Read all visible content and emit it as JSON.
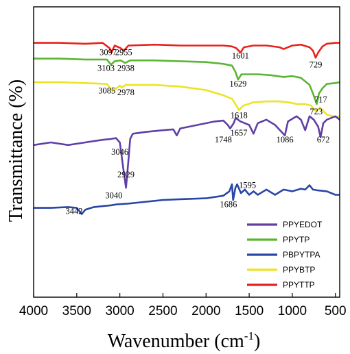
{
  "chart_data": {
    "type": "line",
    "xlabel_base": "Wavenumber (cm",
    "xlabel_sup": "-1",
    "xlabel_end": ")",
    "ylabel": "Transmittance (%)",
    "xlim": [
      4000,
      450
    ],
    "x_reversed": true,
    "x_ticks": [
      "4000",
      "3500",
      "3000",
      "2500",
      "2000",
      "1500",
      "1000",
      "500"
    ],
    "x_tick_values": [
      4000,
      3500,
      3000,
      2500,
      2000,
      1500,
      1000,
      500
    ],
    "y_ticks_shown": false,
    "grid": false,
    "legend_position": "bottom-right",
    "series": [
      {
        "name": "PPYTTP",
        "color": "#e8221c",
        "points": [
          [
            4000,
            0.03
          ],
          [
            3700,
            0.03
          ],
          [
            3400,
            0.035
          ],
          [
            3200,
            0.03
          ],
          [
            3120,
            0.06
          ],
          [
            3097,
            0.085
          ],
          [
            3060,
            0.045
          ],
          [
            2990,
            0.06
          ],
          [
            2955,
            0.075
          ],
          [
            2900,
            0.045
          ],
          [
            2600,
            0.04
          ],
          [
            2300,
            0.045
          ],
          [
            2000,
            0.045
          ],
          [
            1800,
            0.045
          ],
          [
            1700,
            0.05
          ],
          [
            1650,
            0.06
          ],
          [
            1601,
            0.085
          ],
          [
            1560,
            0.055
          ],
          [
            1450,
            0.045
          ],
          [
            1300,
            0.045
          ],
          [
            1150,
            0.055
          ],
          [
            1100,
            0.065
          ],
          [
            1000,
            0.045
          ],
          [
            900,
            0.04
          ],
          [
            800,
            0.055
          ],
          [
            760,
            0.075
          ],
          [
            729,
            0.115
          ],
          [
            700,
            0.085
          ],
          [
            650,
            0.05
          ],
          [
            600,
            0.035
          ],
          [
            500,
            0.03
          ],
          [
            450,
            0.03
          ]
        ]
      },
      {
        "name": "PPYTP",
        "color": "#5ab532",
        "points": [
          [
            4000,
            0.12
          ],
          [
            3700,
            0.12
          ],
          [
            3400,
            0.125
          ],
          [
            3150,
            0.125
          ],
          [
            3103,
            0.155
          ],
          [
            3060,
            0.135
          ],
          [
            2990,
            0.13
          ],
          [
            2938,
            0.145
          ],
          [
            2880,
            0.13
          ],
          [
            2600,
            0.13
          ],
          [
            2300,
            0.135
          ],
          [
            2000,
            0.14
          ],
          [
            1800,
            0.15
          ],
          [
            1700,
            0.16
          ],
          [
            1660,
            0.195
          ],
          [
            1629,
            0.24
          ],
          [
            1590,
            0.21
          ],
          [
            1500,
            0.21
          ],
          [
            1400,
            0.21
          ],
          [
            1250,
            0.215
          ],
          [
            1100,
            0.225
          ],
          [
            1000,
            0.22
          ],
          [
            900,
            0.23
          ],
          [
            800,
            0.27
          ],
          [
            760,
            0.32
          ],
          [
            717,
            0.38
          ],
          [
            690,
            0.32
          ],
          [
            650,
            0.29
          ],
          [
            600,
            0.265
          ],
          [
            500,
            0.26
          ],
          [
            450,
            0.255
          ]
        ]
      },
      {
        "name": "PPYBTP",
        "color": "#ece423",
        "points": [
          [
            4000,
            0.255
          ],
          [
            3700,
            0.255
          ],
          [
            3400,
            0.26
          ],
          [
            3150,
            0.265
          ],
          [
            3085,
            0.305
          ],
          [
            3040,
            0.29
          ],
          [
            3000,
            0.275
          ],
          [
            2978,
            0.285
          ],
          [
            2930,
            0.27
          ],
          [
            2600,
            0.27
          ],
          [
            2300,
            0.28
          ],
          [
            2000,
            0.3
          ],
          [
            1800,
            0.33
          ],
          [
            1700,
            0.35
          ],
          [
            1660,
            0.38
          ],
          [
            1618,
            0.415
          ],
          [
            1570,
            0.39
          ],
          [
            1450,
            0.37
          ],
          [
            1300,
            0.365
          ],
          [
            1150,
            0.365
          ],
          [
            1050,
            0.37
          ],
          [
            950,
            0.38
          ],
          [
            850,
            0.38
          ],
          [
            780,
            0.39
          ],
          [
            750,
            0.41
          ],
          [
            723,
            0.42
          ],
          [
            680,
            0.4
          ],
          [
            600,
            0.44
          ],
          [
            500,
            0.455
          ],
          [
            450,
            0.45
          ]
        ]
      },
      {
        "name": "PPYEDOT",
        "color": "#5f3fa6",
        "points": [
          [
            4000,
            0.615
          ],
          [
            3800,
            0.6
          ],
          [
            3600,
            0.615
          ],
          [
            3400,
            0.6
          ],
          [
            3200,
            0.585
          ],
          [
            3100,
            0.58
          ],
          [
            3046,
            0.575
          ],
          [
            3000,
            0.6
          ],
          [
            2960,
            0.75
          ],
          [
            2929,
            0.86
          ],
          [
            2900,
            0.7
          ],
          [
            2880,
            0.58
          ],
          [
            2850,
            0.55
          ],
          [
            2700,
            0.54
          ],
          [
            2500,
            0.53
          ],
          [
            2380,
            0.525
          ],
          [
            2340,
            0.56
          ],
          [
            2300,
            0.52
          ],
          [
            2100,
            0.5
          ],
          [
            1900,
            0.48
          ],
          [
            1800,
            0.475
          ],
          [
            1748,
            0.5
          ],
          [
            1720,
            0.52
          ],
          [
            1680,
            0.49
          ],
          [
            1657,
            0.46
          ],
          [
            1600,
            0.48
          ],
          [
            1500,
            0.5
          ],
          [
            1450,
            0.55
          ],
          [
            1400,
            0.49
          ],
          [
            1300,
            0.47
          ],
          [
            1200,
            0.5
          ],
          [
            1086,
            0.56
          ],
          [
            1050,
            0.48
          ],
          [
            950,
            0.45
          ],
          [
            900,
            0.47
          ],
          [
            850,
            0.53
          ],
          [
            800,
            0.45
          ],
          [
            750,
            0.47
          ],
          [
            700,
            0.51
          ],
          [
            672,
            0.57
          ],
          [
            640,
            0.49
          ],
          [
            600,
            0.47
          ],
          [
            500,
            0.45
          ],
          [
            450,
            0.47
          ]
        ]
      },
      {
        "name": "PBPYTPA",
        "color": "#2945a6",
        "points": [
          [
            4000,
            0.975
          ],
          [
            3800,
            0.975
          ],
          [
            3600,
            0.97
          ],
          [
            3500,
            0.975
          ],
          [
            3442,
            1.01
          ],
          [
            3400,
            0.985
          ],
          [
            3300,
            0.97
          ],
          [
            3200,
            0.965
          ],
          [
            3100,
            0.96
          ],
          [
            3040,
            0.955
          ],
          [
            2900,
            0.95
          ],
          [
            2800,
            0.945
          ],
          [
            2500,
            0.93
          ],
          [
            2300,
            0.925
          ],
          [
            2000,
            0.92
          ],
          [
            1800,
            0.905
          ],
          [
            1730,
            0.88
          ],
          [
            1700,
            0.84
          ],
          [
            1686,
            0.93
          ],
          [
            1660,
            0.86
          ],
          [
            1640,
            0.84
          ],
          [
            1595,
            0.89
          ],
          [
            1550,
            0.87
          ],
          [
            1500,
            0.9
          ],
          [
            1450,
            0.88
          ],
          [
            1400,
            0.9
          ],
          [
            1300,
            0.87
          ],
          [
            1200,
            0.9
          ],
          [
            1100,
            0.87
          ],
          [
            1000,
            0.88
          ],
          [
            900,
            0.865
          ],
          [
            850,
            0.87
          ],
          [
            800,
            0.845
          ],
          [
            760,
            0.87
          ],
          [
            700,
            0.875
          ],
          [
            600,
            0.88
          ],
          [
            500,
            0.9
          ],
          [
            450,
            0.9
          ]
        ]
      }
    ],
    "legend_order": [
      "PPYEDOT",
      "PPYTP",
      "PBPYTPA",
      "PPYBTP",
      "PPYTTP"
    ],
    "annotations": [
      {
        "text": "3097",
        "x": 3135,
        "y": 0.1
      },
      {
        "text": "2955",
        "x": 2955,
        "y": 0.1
      },
      {
        "text": "1601",
        "x": 1601,
        "y": 0.12
      },
      {
        "text": "729",
        "x": 729,
        "y": 0.17
      },
      {
        "text": "3103",
        "x": 3160,
        "y": 0.19
      },
      {
        "text": "2938",
        "x": 2930,
        "y": 0.19
      },
      {
        "text": "3085",
        "x": 3150,
        "y": 0.32
      },
      {
        "text": "2978",
        "x": 2930,
        "y": 0.33
      },
      {
        "text": "1629",
        "x": 1629,
        "y": 0.28
      },
      {
        "text": "717",
        "x": 670,
        "y": 0.37
      },
      {
        "text": "1618",
        "x": 1618,
        "y": 0.46
      },
      {
        "text": "723",
        "x": 723,
        "y": 0.44
      },
      {
        "text": "1748",
        "x": 1800,
        "y": 0.6
      },
      {
        "text": "1657",
        "x": 1620,
        "y": 0.56
      },
      {
        "text": "1086",
        "x": 1086,
        "y": 0.6
      },
      {
        "text": "672",
        "x": 640,
        "y": 0.6
      },
      {
        "text": "3046",
        "x": 3000,
        "y": 0.67
      },
      {
        "text": "2929",
        "x": 2929,
        "y": 0.8
      },
      {
        "text": "1595",
        "x": 1520,
        "y": 0.86
      },
      {
        "text": "3040",
        "x": 3070,
        "y": 0.92
      },
      {
        "text": "1686",
        "x": 1740,
        "y": 0.97
      },
      {
        "text": "3442",
        "x": 3530,
        "y": 1.01
      }
    ]
  }
}
